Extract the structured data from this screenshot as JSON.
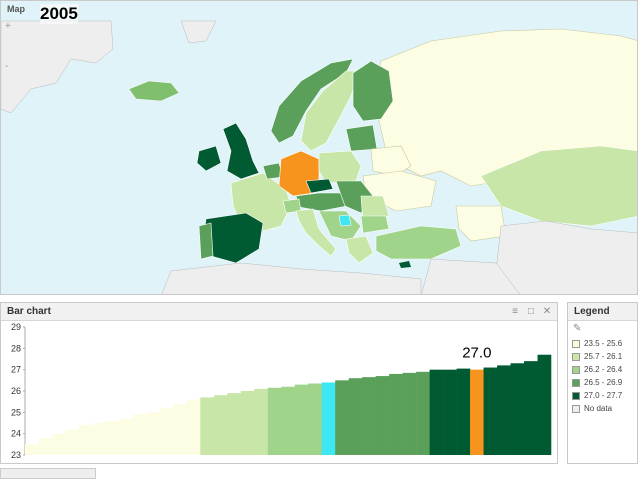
{
  "map": {
    "title": "Map",
    "year": "2005",
    "zoom_in": "+",
    "zoom_out": "-",
    "colors": {
      "sea": "#dff3f8",
      "no_data": "#eeeeee",
      "highlight": "#f7941d",
      "highlight2": "#3de8f4"
    }
  },
  "bar_chart": {
    "title": "Bar chart",
    "icons": [
      "menu-icon",
      "maximize-icon",
      "close-icon"
    ],
    "callout_label": "27.0"
  },
  "chart_data": {
    "type": "bar",
    "ylim": [
      23,
      29
    ],
    "yticks": [
      23,
      24,
      25,
      26,
      27,
      28,
      29
    ],
    "highlight_index_orange": 33,
    "highlight_index_cyan": 22,
    "values": [
      23.5,
      23.8,
      24.0,
      24.2,
      24.4,
      24.5,
      24.6,
      24.7,
      24.9,
      25.0,
      25.2,
      25.4,
      25.6,
      25.7,
      25.8,
      25.9,
      26.0,
      26.1,
      26.15,
      26.2,
      26.3,
      26.35,
      26.4,
      26.5,
      26.6,
      26.65,
      26.7,
      26.8,
      26.85,
      26.9,
      27.0,
      27.0,
      27.05,
      27.0,
      27.1,
      27.2,
      27.3,
      27.4,
      27.7
    ],
    "bin_colors": [
      "#fdfde3",
      "#c7e6a7",
      "#9fd48a",
      "#5aa05a",
      "#005a32"
    ]
  },
  "legend": {
    "title": "Legend",
    "pencil_icon": "pencil-icon",
    "items": [
      {
        "label": "23.5 - 25.6",
        "color": "#fdfde3"
      },
      {
        "label": "25.7 - 26.1",
        "color": "#c7e6a7"
      },
      {
        "label": "26.2 - 26.4",
        "color": "#9fd48a"
      },
      {
        "label": "26.5 - 26.9",
        "color": "#5aa05a"
      },
      {
        "label": "27.0 - 27.7",
        "color": "#005a32"
      },
      {
        "label": "No data",
        "color": "#eeeeee"
      }
    ]
  }
}
